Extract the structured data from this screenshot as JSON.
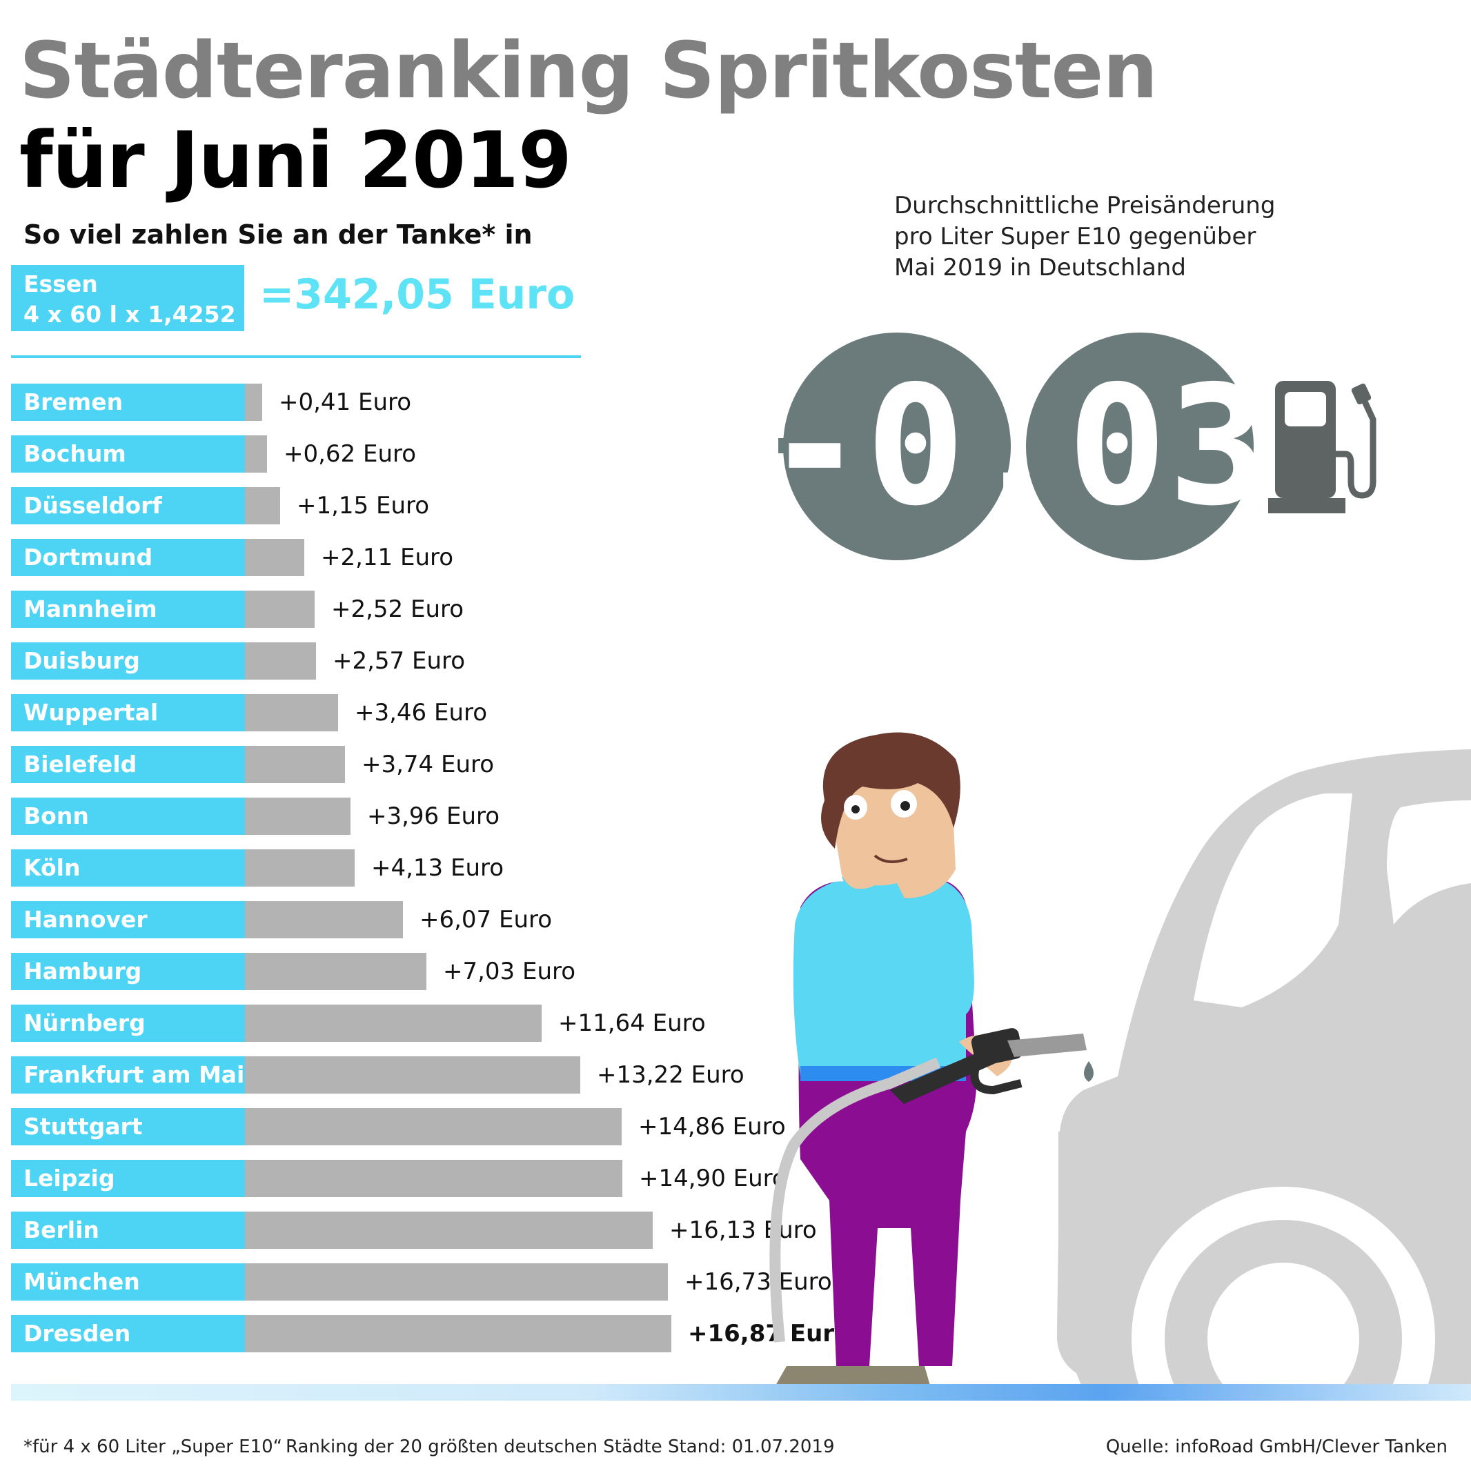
{
  "header": {
    "title_line1": "Städteranking Spritkosten",
    "title_line2": "für Juni 2019",
    "subtitle": "So viel zahlen Sie an der Tanke* in"
  },
  "reference": {
    "city": "Essen",
    "formula": "4 x 60 l x 1,4252 €",
    "total": "=342,05 Euro"
  },
  "price_change": {
    "title_lines": [
      "Durchschnittliche Preisänderung",
      "pro Liter Super E10 gegenüber",
      "Mai 2019 in Deutschland"
    ],
    "display_value": "-0,03",
    "display_color": "#6b7b7b"
  },
  "colors": {
    "city_label_bg": "#4dd4f5",
    "bar": "#b3b3b3",
    "title_gray": "#808080",
    "total_cyan": "#5ee3f6"
  },
  "chart_data": {
    "type": "bar",
    "orientation": "horizontal",
    "title": "",
    "xlabel": "",
    "ylabel": "",
    "categories": [
      "Bremen",
      "Bochum",
      "Düsseldorf",
      "Dortmund",
      "Mannheim",
      "Duisburg",
      "Wuppertal",
      "Bielefeld",
      "Bonn",
      "Köln",
      "Hannover",
      "Hamburg",
      "Nürnberg",
      "Frankfurt am Main",
      "Stuttgart",
      "Leipzig",
      "Berlin",
      "München",
      "Dresden"
    ],
    "values": [
      0.41,
      0.62,
      1.15,
      2.11,
      2.52,
      2.57,
      3.46,
      3.74,
      3.96,
      4.13,
      6.07,
      7.03,
      11.64,
      13.22,
      14.86,
      14.9,
      16.13,
      16.73,
      16.87
    ],
    "value_labels": [
      "+0,41 Euro",
      "+0,62 Euro",
      "+1,15 Euro",
      "+2,11 Euro",
      "+2,52 Euro",
      "+2,57 Euro",
      "+3,46 Euro",
      "+3,74 Euro",
      "+3,96 Euro",
      "+4,13 Euro",
      "+6,07 Euro",
      "+7,03 Euro",
      "+11,64 Euro",
      "+13,22 Euro",
      "+14,86 Euro",
      "+14,90 Euro",
      "+16,13 Euro",
      "+16,73 Euro",
      "+16,87 Euro"
    ],
    "xlim": [
      0,
      16.87
    ],
    "grid": false,
    "legend": "none"
  },
  "footer": {
    "note": "*für 4 x 60 Liter „Super E10“",
    "ranking": "Ranking der 20 größten deutschen Städte",
    "stand": "Stand: 01.07.2019",
    "source": "Quelle: infoRoad GmbH/Clever Tanken"
  }
}
